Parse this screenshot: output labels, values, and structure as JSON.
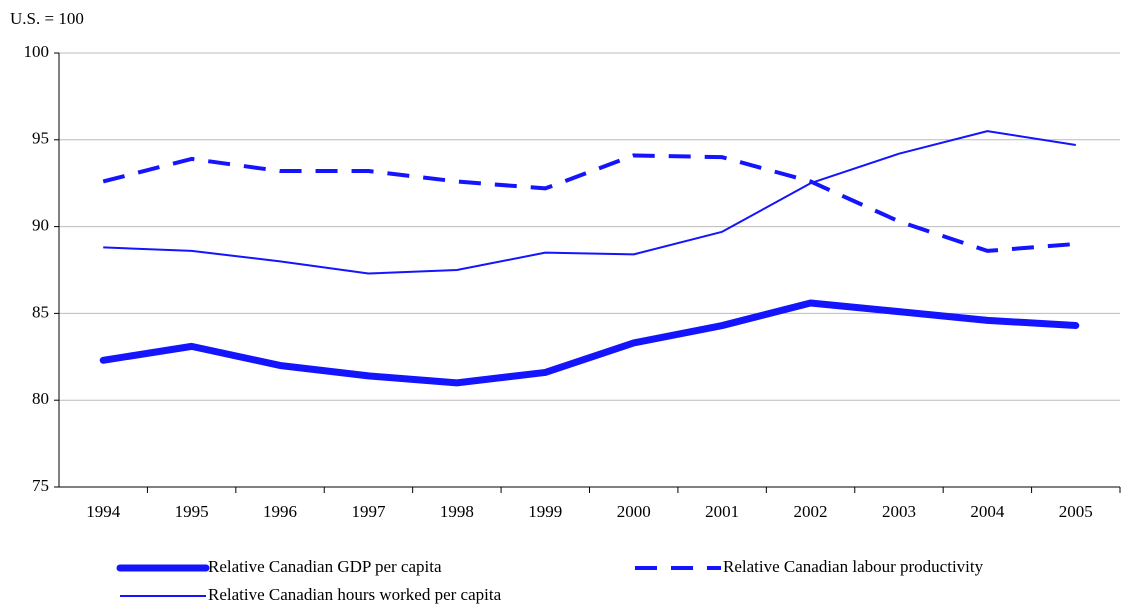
{
  "chart_data": {
    "type": "line",
    "y_label": "U.S. = 100",
    "categories": [
      "1994",
      "1995",
      "1996",
      "1997",
      "1998",
      "1999",
      "2000",
      "2001",
      "2002",
      "2003",
      "2004",
      "2005"
    ],
    "series": [
      {
        "name": "Relative Canadian GDP per capita",
        "color": "#1414ff",
        "style": "thick",
        "values": [
          82.3,
          83.1,
          82.0,
          81.4,
          81.0,
          81.6,
          83.3,
          84.3,
          85.6,
          85.1,
          84.6,
          84.3
        ]
      },
      {
        "name": "Relative Canadian labour productivity",
        "color": "#1414ff",
        "style": "dashed",
        "values": [
          92.6,
          93.9,
          93.2,
          93.2,
          92.6,
          92.2,
          94.1,
          94.0,
          92.6,
          90.3,
          88.6,
          89.0
        ]
      },
      {
        "name": "Relative Canadian hours worked per capita",
        "color": "#1414ff",
        "style": "thin",
        "values": [
          88.8,
          88.6,
          88.0,
          87.3,
          87.5,
          88.5,
          88.4,
          89.7,
          92.5,
          94.2,
          95.5,
          94.7
        ]
      }
    ],
    "ylim": [
      75,
      100
    ],
    "yticks": [
      75,
      80,
      85,
      90,
      95,
      100
    ],
    "grid": true
  }
}
